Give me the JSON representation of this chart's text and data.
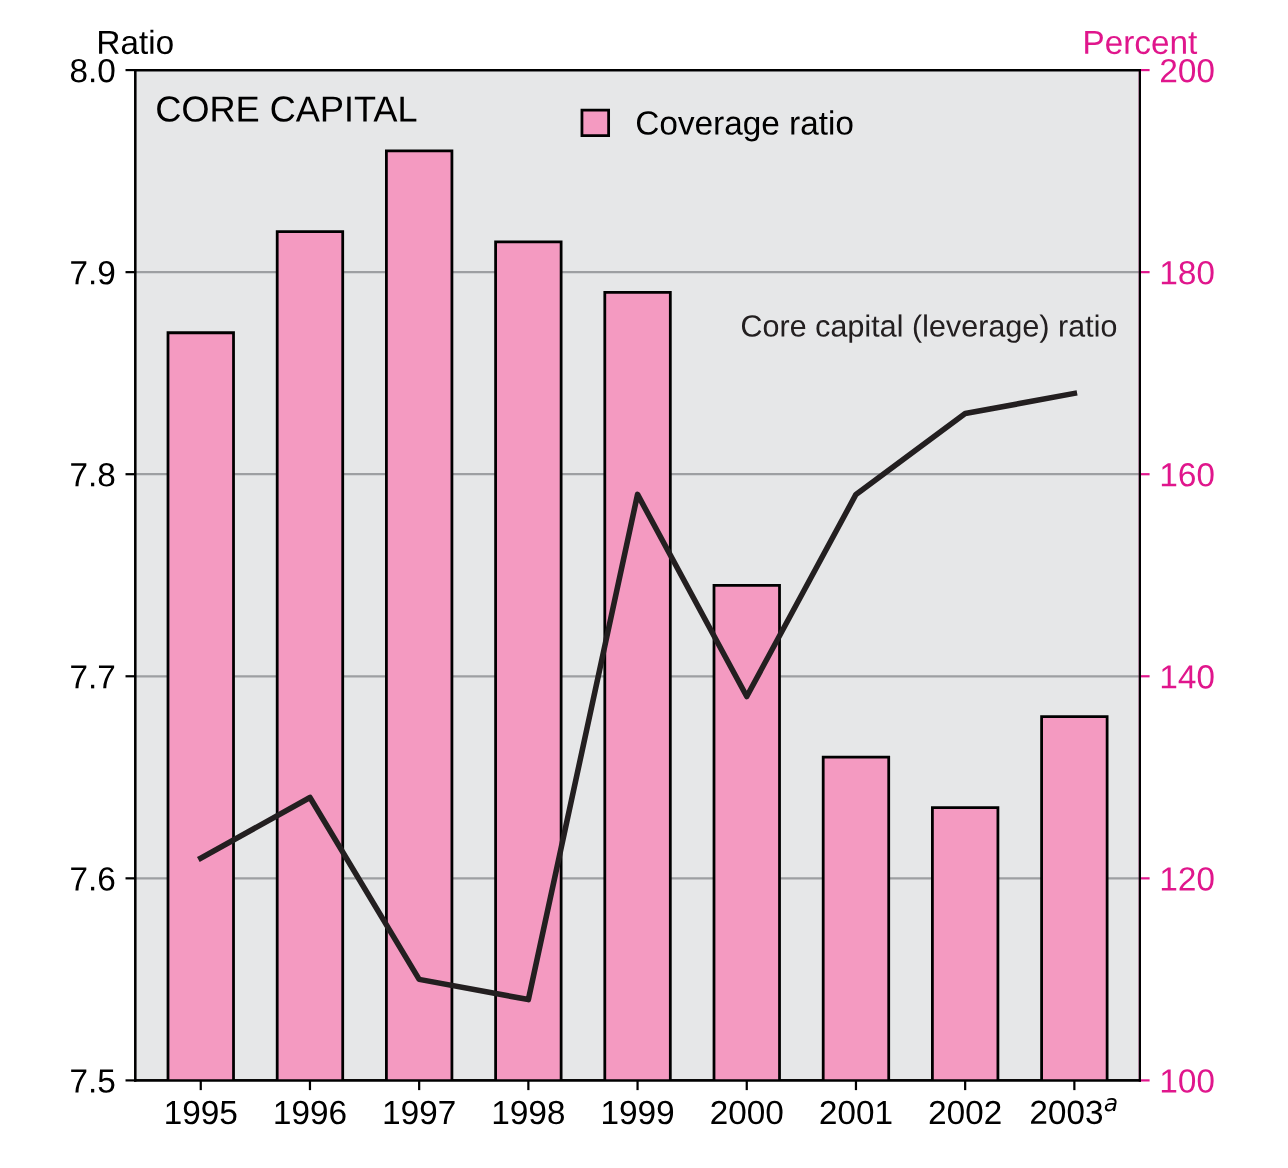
{
  "chart_data": {
    "type": "bar",
    "title": "CORE CAPITAL",
    "ylabel": "Ratio",
    "y2label": "Percent",
    "categories": [
      "1995",
      "1996",
      "1997",
      "1998",
      "1999",
      "2000",
      "2001",
      "2002",
      "2003$^{a}$"
    ],
    "series": [
      {
        "name": "Coverage ratio",
        "axis": "y2",
        "color": "#f49ac1",
        "values": [
          174,
          184,
          192,
          183,
          178,
          149,
          132,
          127,
          136
        ]
      },
      {
        "name": "Core capital (leverage) ratio",
        "type": "line",
        "axis": "y",
        "color": "#231f20",
        "values": [
          7.61,
          7.64,
          7.55,
          7.54,
          7.79,
          7.69,
          7.79,
          7.83,
          7.84
        ]
      }
    ],
    "ylim": [
      7.5,
      8.0
    ],
    "yticks": [
      7.5,
      7.6,
      7.7,
      7.8,
      7.9,
      {
        "value": 8,
        "label": "8.0"
      }
    ],
    "y2lim": [
      100,
      200
    ],
    "y2ticks": [
      100,
      120,
      140,
      160,
      180,
      200
    ],
    "grid": "y",
    "legend": "top",
    "marker": "none",
    "line_style": "solid"
  }
}
